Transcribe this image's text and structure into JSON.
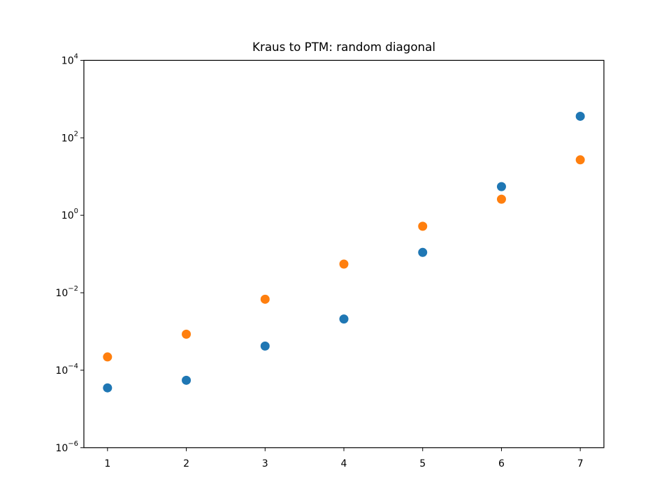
{
  "chart_data": {
    "type": "scatter",
    "title": "Kraus to PTM: random diagonal",
    "xlabel": "",
    "ylabel": "",
    "x_ticks": [
      "1",
      "2",
      "3",
      "4",
      "5",
      "6",
      "7"
    ],
    "y_scale": "log",
    "y_ticks": [
      {
        "base": "10",
        "exp": "4"
      },
      {
        "base": "10",
        "exp": "2"
      },
      {
        "base": "10",
        "exp": "0"
      },
      {
        "base": "10",
        "exp": "−2"
      },
      {
        "base": "10",
        "exp": "−4"
      },
      {
        "base": "10",
        "exp": "−6"
      }
    ],
    "xlim": [
      0.7,
      7.3
    ],
    "ylim": [
      1e-06,
      10000
    ],
    "grid": false,
    "legend": "none",
    "series": [
      {
        "color": "#1f77b4",
        "x": [
          1,
          2,
          3,
          4,
          5,
          6,
          7
        ],
        "y": [
          3.5e-05,
          5.5e-05,
          0.00042,
          0.0021,
          0.11,
          5.5,
          360
        ]
      },
      {
        "color": "#ff7f0e",
        "x": [
          1,
          2,
          3,
          4,
          5,
          6,
          7
        ],
        "y": [
          0.00022,
          0.00085,
          0.0068,
          0.055,
          0.52,
          2.6,
          27
        ]
      }
    ]
  }
}
